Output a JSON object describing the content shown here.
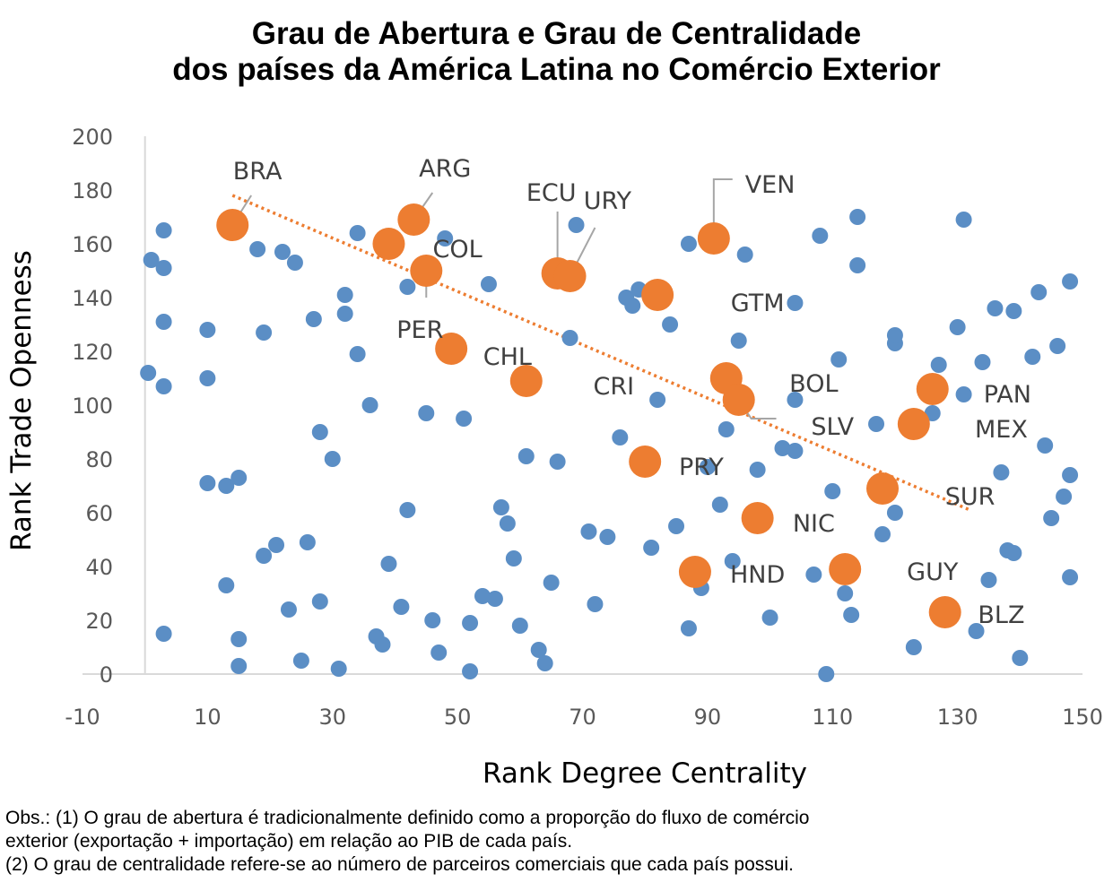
{
  "chart_data": {
    "type": "scatter",
    "title": "Grau de Abertura e Grau de Centralidade",
    "subtitle": "dos países da América Latina no Comércio Exterior",
    "xlabel": "Rank Degree Centrality",
    "ylabel": "Rank Trade Openness",
    "xlim": [
      -10,
      150
    ],
    "ylim": [
      0,
      200
    ],
    "x_ticks": [
      "-10",
      "10",
      "30",
      "50",
      "70",
      "90",
      "110",
      "130",
      "150"
    ],
    "y_ticks": [
      "0",
      "20",
      "40",
      "60",
      "80",
      "100",
      "120",
      "140",
      "160",
      "180",
      "200"
    ],
    "grid": false,
    "legend": "none",
    "colors": {
      "other": "#5b8ec5",
      "latam": "#ed7d31",
      "trend": "#ed7d31"
    },
    "trendline": {
      "x": [
        14,
        132
      ],
      "y": [
        178,
        61
      ],
      "style": "dotted"
    },
    "series": [
      {
        "values": [
          [
            0.5,
            112
          ],
          [
            1,
            154
          ],
          [
            3,
            151
          ],
          [
            3,
            131
          ],
          [
            3,
            165
          ],
          [
            3,
            107
          ],
          [
            3,
            15
          ],
          [
            10,
            128
          ],
          [
            10,
            110
          ],
          [
            10,
            71
          ],
          [
            13,
            70
          ],
          [
            13,
            33
          ],
          [
            15,
            73
          ],
          [
            15,
            13
          ],
          [
            15,
            3
          ],
          [
            18,
            158
          ],
          [
            19,
            127
          ],
          [
            19,
            44
          ],
          [
            21,
            48
          ],
          [
            22,
            157
          ],
          [
            23,
            24
          ],
          [
            24,
            153
          ],
          [
            25,
            5
          ],
          [
            26,
            49
          ],
          [
            27,
            132
          ],
          [
            28,
            90
          ],
          [
            28,
            27
          ],
          [
            30,
            80
          ],
          [
            31,
            2
          ],
          [
            32,
            141
          ],
          [
            32,
            134
          ],
          [
            34,
            164
          ],
          [
            34,
            119
          ],
          [
            36,
            100
          ],
          [
            37,
            14
          ],
          [
            38,
            11
          ],
          [
            39,
            41
          ],
          [
            41,
            25
          ],
          [
            42,
            144
          ],
          [
            42,
            61
          ],
          [
            45,
            97
          ],
          [
            46,
            20
          ],
          [
            47,
            8
          ],
          [
            48,
            162
          ],
          [
            51,
            95
          ],
          [
            52,
            1
          ],
          [
            52,
            19
          ],
          [
            54,
            29
          ],
          [
            55,
            145
          ],
          [
            56,
            28
          ],
          [
            57,
            62
          ],
          [
            58,
            56
          ],
          [
            59,
            43
          ],
          [
            60,
            18
          ],
          [
            61,
            81
          ],
          [
            63,
            9
          ],
          [
            64,
            4
          ],
          [
            65,
            34
          ],
          [
            66,
            79
          ],
          [
            68,
            125
          ],
          [
            69,
            167
          ],
          [
            71,
            53
          ],
          [
            72,
            26
          ],
          [
            74,
            51
          ],
          [
            76,
            88
          ],
          [
            77,
            140
          ],
          [
            78,
            137
          ],
          [
            79,
            143
          ],
          [
            81,
            47
          ],
          [
            82,
            102
          ],
          [
            84,
            130
          ],
          [
            85,
            55
          ],
          [
            87,
            17
          ],
          [
            87,
            160
          ],
          [
            89,
            32
          ],
          [
            90,
            77
          ],
          [
            92,
            63
          ],
          [
            93,
            91
          ],
          [
            94,
            42
          ],
          [
            95,
            124
          ],
          [
            96,
            156
          ],
          [
            98,
            76
          ],
          [
            100,
            21
          ],
          [
            102,
            84
          ],
          [
            104,
            83
          ],
          [
            104,
            102
          ],
          [
            104,
            138
          ],
          [
            107,
            37
          ],
          [
            108,
            163
          ],
          [
            109,
            0
          ],
          [
            110,
            68
          ],
          [
            111,
            117
          ],
          [
            112,
            30
          ],
          [
            113,
            22
          ],
          [
            114,
            152
          ],
          [
            114,
            170
          ],
          [
            117,
            93
          ],
          [
            118,
            52
          ],
          [
            120,
            60
          ],
          [
            120,
            123
          ],
          [
            120,
            126
          ],
          [
            123,
            10
          ],
          [
            126,
            97
          ],
          [
            127,
            115
          ],
          [
            130,
            129
          ],
          [
            131,
            104
          ],
          [
            131,
            169
          ],
          [
            133,
            16
          ],
          [
            134,
            116
          ],
          [
            135,
            35
          ],
          [
            136,
            136
          ],
          [
            137,
            75
          ],
          [
            138,
            46
          ],
          [
            139,
            135
          ],
          [
            139,
            45
          ],
          [
            140,
            6
          ],
          [
            142,
            118
          ],
          [
            143,
            142
          ],
          [
            144,
            85
          ],
          [
            145,
            58
          ],
          [
            146,
            122
          ],
          [
            147,
            66
          ],
          [
            148,
            36
          ],
          [
            148,
            146
          ],
          [
            148,
            74
          ]
        ]
      },
      {
        "points": [
          {
            "label": "BRA",
            "x": 14,
            "y": 167
          },
          {
            "label": "ARG",
            "x": 43,
            "y": 169
          },
          {
            "label": "COL",
            "x": 39,
            "y": 160
          },
          {
            "label": "PER",
            "x": 45,
            "y": 150
          },
          {
            "label": "CHL",
            "x": 49,
            "y": 121
          },
          {
            "label": "CRI",
            "x": 61,
            "y": 109
          },
          {
            "label": "ECU",
            "x": 66,
            "y": 149
          },
          {
            "label": "URY",
            "x": 68,
            "y": 148
          },
          {
            "label": "VEN",
            "x": 91,
            "y": 162
          },
          {
            "label": "GTM",
            "x": 82,
            "y": 141
          },
          {
            "label": "BOL",
            "x": 93,
            "y": 110
          },
          {
            "label": "SLV",
            "x": 95,
            "y": 102
          },
          {
            "label": "PRY",
            "x": 80,
            "y": 79
          },
          {
            "label": "PAN",
            "x": 126,
            "y": 106
          },
          {
            "label": "MEX",
            "x": 123,
            "y": 93
          },
          {
            "label": "SUR",
            "x": 118,
            "y": 69
          },
          {
            "label": "NIC",
            "x": 98,
            "y": 58
          },
          {
            "label": "HND",
            "x": 88,
            "y": 38
          },
          {
            "label": "GUY",
            "x": 112,
            "y": 39
          },
          {
            "label": "BLZ",
            "x": 128,
            "y": 23
          }
        ]
      }
    ],
    "annotations": [
      {
        "text": "BRA",
        "x": 18,
        "y": 187
      },
      {
        "text": "ARG",
        "x": 48,
        "y": 188
      },
      {
        "text": "COL",
        "x": 50,
        "y": 158
      },
      {
        "text": "PER",
        "x": 44,
        "y": 128
      },
      {
        "text": "CHL",
        "x": 58,
        "y": 118
      },
      {
        "text": "CRI",
        "x": 75,
        "y": 107
      },
      {
        "text": "ECU",
        "x": 65,
        "y": 179
      },
      {
        "text": "URY",
        "x": 74,
        "y": 176
      },
      {
        "text": "VEN",
        "x": 100,
        "y": 182
      },
      {
        "text": "GTM",
        "x": 98,
        "y": 138
      },
      {
        "text": "BOL",
        "x": 107,
        "y": 108
      },
      {
        "text": "SLV",
        "x": 110,
        "y": 92
      },
      {
        "text": "PRY",
        "x": 89,
        "y": 77
      },
      {
        "text": "PAN",
        "x": 138,
        "y": 104
      },
      {
        "text": "MEX",
        "x": 137,
        "y": 91
      },
      {
        "text": "SUR",
        "x": 132,
        "y": 66
      },
      {
        "text": "NIC",
        "x": 107,
        "y": 56
      },
      {
        "text": "HND",
        "x": 98,
        "y": 37
      },
      {
        "text": "GUY",
        "x": 126,
        "y": 38
      },
      {
        "text": "BLZ",
        "x": 137,
        "y": 22
      }
    ],
    "leader_lines": [
      {
        "from": [
          14,
          167
        ],
        "to": [
          17,
          178
        ]
      },
      {
        "from": [
          43,
          169
        ],
        "to": [
          46,
          179
        ]
      },
      {
        "from": [
          45,
          150
        ],
        "to": [
          45,
          140
        ]
      },
      {
        "from": [
          66,
          149
        ],
        "to": [
          66,
          172
        ]
      },
      {
        "from": [
          68,
          148
        ],
        "to": [
          72,
          166
        ]
      },
      {
        "from": [
          91,
          162
        ],
        "to": [
          91,
          184
        ],
        "to2": [
          94,
          184
        ]
      },
      {
        "from": [
          95,
          102
        ],
        "to": [
          97,
          95
        ],
        "to2": [
          101,
          95
        ]
      }
    ]
  },
  "notes": [
    "Obs.: (1) O grau de abertura é tradicionalmente definido como a proporção do fluxo de comércio",
    "exterior (exportação + importação) em relação ao PIB de cada país.",
    "(2) O grau de centralidade refere-se ao número de parceiros comerciais que cada país possui."
  ]
}
